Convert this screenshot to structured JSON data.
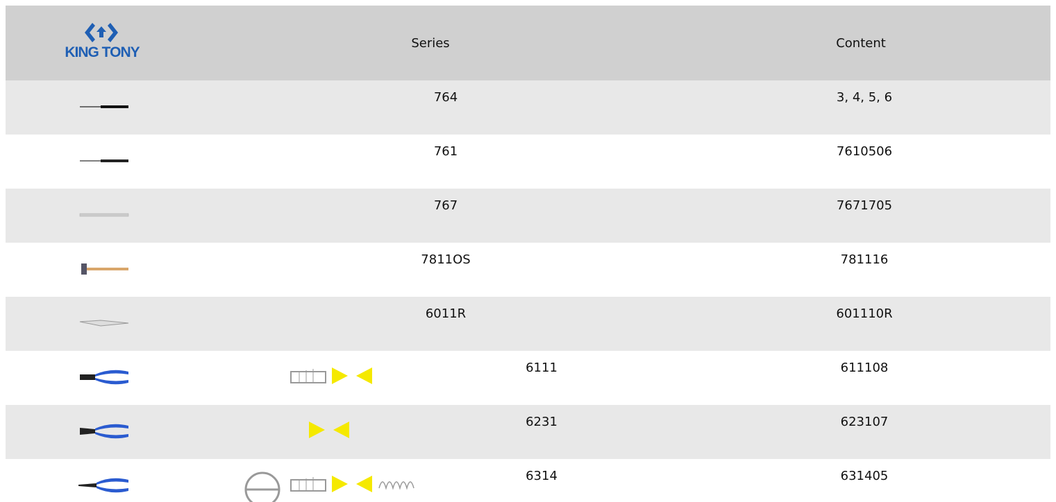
{
  "header": {
    "logo": "KING TONY",
    "columns": [
      "Series",
      "Content"
    ]
  },
  "table": {
    "rows": [
      {
        "series": "764",
        "content": "3, 4, 5, 6"
      },
      {
        "series": "761",
        "content": "7610506"
      },
      {
        "series": "767",
        "content": "7671705"
      },
      {
        "series": "7811OS",
        "content": "781116"
      },
      {
        "series": "6011R",
        "content": "601110R"
      },
      {
        "series": "6111",
        "content": "611108"
      },
      {
        "series": "6231",
        "content": "623107"
      },
      {
        "series": "6314",
        "content": "631405"
      }
    ]
  }
}
